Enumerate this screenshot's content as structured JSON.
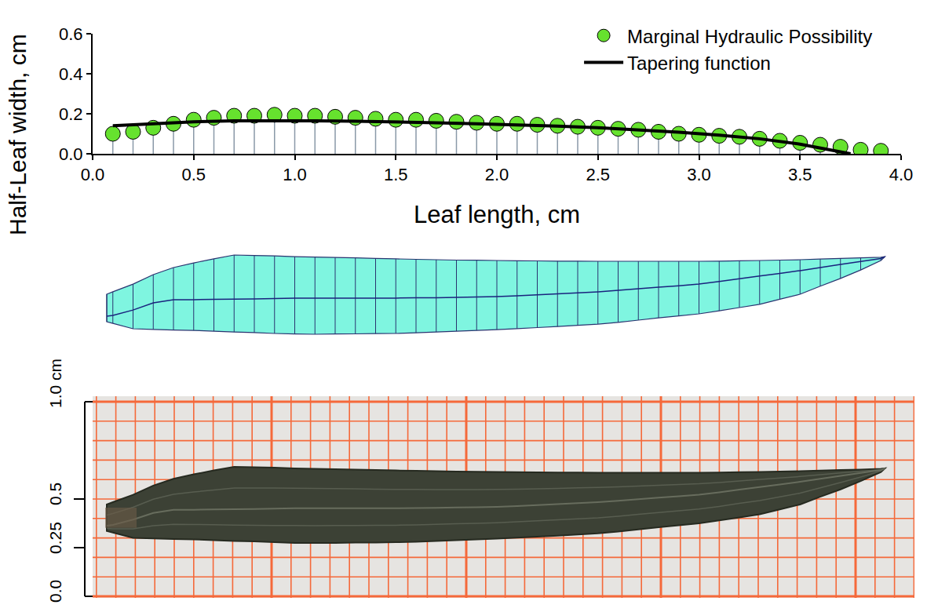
{
  "chart_data": {
    "type": "scatter",
    "xlabel": "Leaf length, cm",
    "ylabel": "Half-Leaf width, cm",
    "xlim": [
      0,
      4
    ],
    "ylim": [
      0,
      0.6
    ],
    "xticks": [
      {
        "value": 0,
        "label": "0.0"
      },
      0.5,
      {
        "value": 1,
        "label": "1.0"
      },
      1.5,
      {
        "value": 2,
        "label": "2.0"
      },
      2.5,
      {
        "value": 3,
        "label": "3.0"
      },
      3.5,
      {
        "value": 4,
        "label": "4.0"
      }
    ],
    "yticks": [
      {
        "value": 0,
        "label": "0.0"
      },
      0.2,
      0.4,
      0.6
    ],
    "grid": false,
    "legend": "upper right",
    "series": [
      {
        "name": "Marginal Hydraulic Possibility",
        "type": "stem",
        "marker": "circle",
        "color": "#66e22e",
        "x": [
          0.1,
          0.2,
          0.3,
          0.4,
          0.5,
          0.6,
          0.7,
          0.8,
          0.9,
          1.0,
          1.1,
          1.2,
          1.3,
          1.4,
          1.5,
          1.6,
          1.7,
          1.8,
          1.9,
          2.0,
          2.1,
          2.2,
          2.3,
          2.4,
          2.5,
          2.6,
          2.7,
          2.8,
          2.9,
          3.0,
          3.1,
          3.2,
          3.3,
          3.4,
          3.5,
          3.6,
          3.7,
          3.8,
          3.9
        ],
        "values": [
          0.1,
          0.11,
          0.13,
          0.15,
          0.17,
          0.18,
          0.19,
          0.19,
          0.195,
          0.19,
          0.19,
          0.185,
          0.18,
          0.175,
          0.17,
          0.17,
          0.165,
          0.16,
          0.155,
          0.15,
          0.15,
          0.145,
          0.14,
          0.135,
          0.13,
          0.125,
          0.12,
          0.11,
          0.1,
          0.095,
          0.09,
          0.085,
          0.075,
          0.065,
          0.055,
          0.045,
          0.035,
          0.02,
          0.015
        ]
      },
      {
        "name": "Tapering function",
        "type": "line",
        "line_style": "solid",
        "color": "#000000",
        "x": [
          0.1,
          0.3,
          0.5,
          0.7,
          0.9,
          1.1,
          1.3,
          1.5,
          1.7,
          1.9,
          2.1,
          2.3,
          2.5,
          2.7,
          2.9,
          3.1,
          3.3,
          3.5,
          3.7,
          3.75
        ],
        "values": [
          0.14,
          0.15,
          0.16,
          0.165,
          0.166,
          0.165,
          0.163,
          0.16,
          0.155,
          0.15,
          0.145,
          0.138,
          0.13,
          0.12,
          0.108,
          0.093,
          0.075,
          0.048,
          0.012,
          0.0
        ]
      }
    ]
  },
  "leaf_schematic": {
    "x": [
      0.07,
      0.1,
      0.2,
      0.3,
      0.4,
      0.5,
      0.6,
      0.7,
      0.8,
      0.9,
      1.0,
      1.1,
      1.2,
      1.3,
      1.4,
      1.5,
      1.6,
      1.7,
      1.8,
      1.9,
      2.0,
      2.1,
      2.2,
      2.3,
      2.4,
      2.5,
      2.6,
      2.7,
      2.8,
      2.9,
      3.0,
      3.1,
      3.2,
      3.3,
      3.4,
      3.5,
      3.6,
      3.7,
      3.8,
      3.9,
      3.92
    ],
    "upper": [
      0.0,
      0.012,
      0.05,
      0.097,
      0.132,
      0.155,
      0.175,
      0.194,
      0.192,
      0.19,
      0.186,
      0.184,
      0.182,
      0.18,
      0.177,
      0.175,
      0.173,
      0.171,
      0.169,
      0.168,
      0.167,
      0.166,
      0.165,
      0.164,
      0.164,
      0.163,
      0.163,
      0.163,
      0.163,
      0.163,
      0.163,
      0.164,
      0.166,
      0.167,
      0.169,
      0.171,
      0.174,
      0.177,
      0.18,
      0.183,
      0.186
    ],
    "midrib": [
      -0.109,
      -0.105,
      -0.078,
      -0.043,
      -0.027,
      -0.027,
      -0.025,
      -0.024,
      -0.023,
      -0.021,
      -0.019,
      -0.019,
      -0.019,
      -0.019,
      -0.019,
      -0.019,
      -0.018,
      -0.017,
      -0.015,
      -0.014,
      -0.012,
      -0.008,
      -0.003,
      0.002,
      0.007,
      0.012,
      0.019,
      0.027,
      0.035,
      0.042,
      0.05,
      0.063,
      0.077,
      0.09,
      0.103,
      0.117,
      0.132,
      0.147,
      0.162,
      0.177,
      0.186
    ],
    "lower": [
      -0.136,
      -0.144,
      -0.171,
      -0.174,
      -0.177,
      -0.179,
      -0.183,
      -0.187,
      -0.19,
      -0.194,
      -0.197,
      -0.198,
      -0.197,
      -0.196,
      -0.195,
      -0.194,
      -0.191,
      -0.187,
      -0.183,
      -0.179,
      -0.175,
      -0.17,
      -0.165,
      -0.16,
      -0.154,
      -0.148,
      -0.139,
      -0.128,
      -0.117,
      -0.107,
      -0.097,
      -0.082,
      -0.066,
      -0.05,
      -0.025,
      0.0,
      0.04,
      0.078,
      0.12,
      0.167,
      0.186
    ]
  },
  "photo": {
    "scale_bar": {
      "ticks": [
        {
          "value": 1.0,
          "label": "1.0 cm"
        },
        {
          "value": 0.5,
          "label": "0.5"
        },
        {
          "value": 0.25,
          "label": "0.25"
        },
        {
          "value": 0.0,
          "label": "0.0"
        }
      ]
    }
  }
}
